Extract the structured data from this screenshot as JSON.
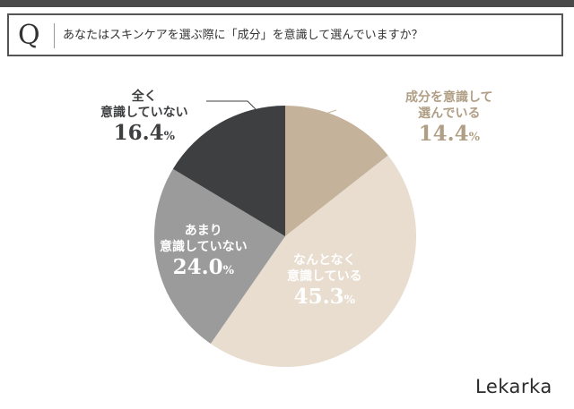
{
  "header": {
    "q_letter": "Q",
    "question": "あなたはスキンケアを選ぶ際に「成分」を意識して選んでいますか？"
  },
  "chart_data": {
    "type": "pie",
    "title": "",
    "start_angle_deg": 0,
    "direction": "clockwise",
    "slices": [
      {
        "line1": "成分を意識して",
        "line2": "選んでいる",
        "value": 14.4,
        "color": "#c4b29b",
        "label_color": "#b09e85"
      },
      {
        "line1": "なんとなく",
        "line2": "意識している",
        "value": 45.3,
        "color": "#e8ddcf",
        "label_color": "#ffffff"
      },
      {
        "line1": "あまり",
        "line2": "意識していない",
        "value": 24.0,
        "color": "#9b9b9b",
        "label_color": "#ffffff"
      },
      {
        "line1": "全く",
        "line2": "意識していない",
        "value": 16.4,
        "color": "#3d3f40",
        "label_color": "#3d3f40"
      }
    ]
  },
  "labels": {
    "s0": {
      "line1": "成分を意識して",
      "line2": "選んでいる",
      "num": "14.4",
      "unit": "%"
    },
    "s1": {
      "line1": "なんとなく",
      "line2": "意識している",
      "num": "45.3",
      "unit": "%"
    },
    "s2": {
      "line1": "あまり",
      "line2": "意識していない",
      "num": "24.0",
      "unit": "%"
    },
    "s3": {
      "line1": "全く",
      "line2": "意識していない",
      "num": "16.4",
      "unit": "%"
    }
  },
  "brand": "Lekarka"
}
